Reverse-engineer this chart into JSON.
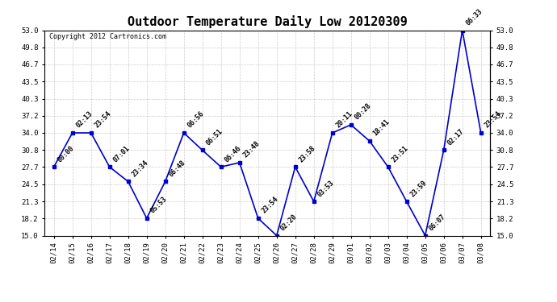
{
  "title": "Outdoor Temperature Daily Low 20120309",
  "copyright": "Copyright 2012 Cartronics.com",
  "x_labels": [
    "02/14",
    "02/15",
    "02/16",
    "02/17",
    "02/18",
    "02/19",
    "02/20",
    "02/21",
    "02/22",
    "02/23",
    "02/24",
    "02/25",
    "02/26",
    "02/27",
    "02/28",
    "02/29",
    "03/01",
    "03/02",
    "03/03",
    "03/04",
    "03/05",
    "03/06",
    "03/07",
    "03/08"
  ],
  "y_values": [
    27.7,
    34.0,
    34.0,
    27.7,
    25.0,
    18.2,
    25.0,
    34.0,
    30.8,
    27.7,
    28.5,
    18.2,
    15.0,
    27.7,
    21.3,
    34.0,
    35.5,
    32.5,
    27.7,
    21.3,
    15.0,
    30.8,
    53.0,
    34.0
  ],
  "time_labels": [
    "00:00",
    "02:13",
    "23:54",
    "07:01",
    "23:34",
    "05:53",
    "06:48",
    "06:56",
    "06:51",
    "06:46",
    "23:48",
    "23:54",
    "02:20",
    "23:58",
    "03:53",
    "20:11",
    "00:28",
    "18:41",
    "23:51",
    "23:59",
    "06:07",
    "02:17",
    "06:33",
    "23:54"
  ],
  "line_color": "#0000cc",
  "marker_color": "#0000cc",
  "background_color": "#ffffff",
  "grid_color": "#cccccc",
  "ylim_min": 15.0,
  "ylim_max": 53.0,
  "yticks": [
    15.0,
    18.2,
    21.3,
    24.5,
    27.7,
    30.8,
    34.0,
    37.2,
    40.3,
    43.5,
    46.7,
    49.8,
    53.0
  ],
  "title_fontsize": 11,
  "annot_fontsize": 6,
  "tick_fontsize": 6.5,
  "copyright_fontsize": 6
}
